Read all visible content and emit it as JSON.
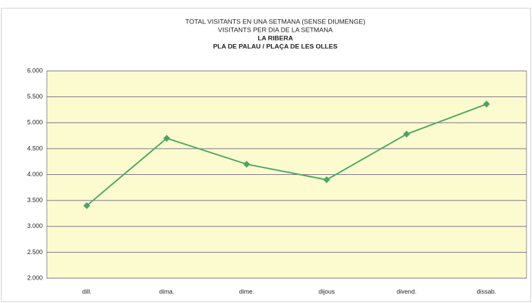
{
  "chart_data": {
    "type": "line",
    "title_lines": [
      "TOTAL VISITANTS EN UNA SETMANA (SENSE DIUMENGE)",
      "VISITANTS PER DIA DE LA SETMANA",
      "LA RIBERA",
      "PLA DE PALAU / PLAÇA DE LES OLLES"
    ],
    "categories": [
      "dill.",
      "dima.",
      "dime.",
      "dijous",
      "divend.",
      "dissab."
    ],
    "values": [
      3400,
      4700,
      4200,
      3900,
      4780,
      5360
    ],
    "color": "#4aa564",
    "ylim": [
      2000,
      6000
    ],
    "yticks": [
      {
        "value": 2000,
        "label": "2.000"
      },
      {
        "value": 2500,
        "label": "2.500"
      },
      {
        "value": 3000,
        "label": "3.000"
      },
      {
        "value": 3500,
        "label": "3.500"
      },
      {
        "value": 4000,
        "label": "4.000"
      },
      {
        "value": 4500,
        "label": "4.500"
      },
      {
        "value": 5000,
        "label": "5.000"
      },
      {
        "value": 5500,
        "label": "5.500"
      },
      {
        "value": 6000,
        "label": "6.000"
      }
    ],
    "grid": true
  }
}
